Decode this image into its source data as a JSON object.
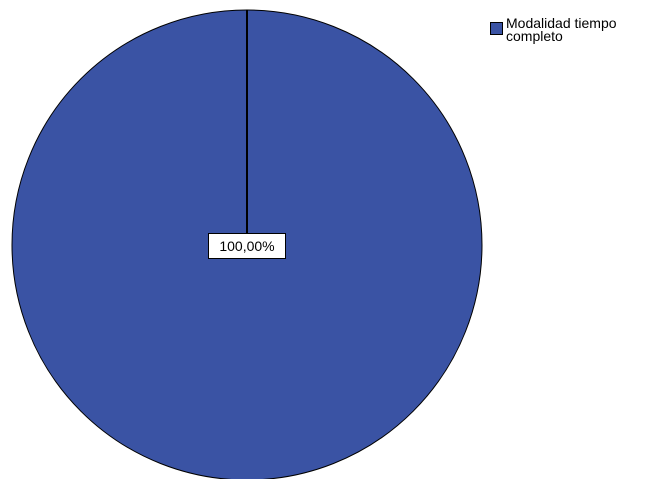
{
  "chart_data": {
    "type": "pie",
    "categories": [
      "Modalidad tiempo completo"
    ],
    "values": [
      100.0
    ],
    "data_labels": [
      "100,00%"
    ],
    "colors": [
      "#3a53a4"
    ],
    "legend_position": "top-right",
    "title": "",
    "xlabel": "",
    "ylabel": ""
  },
  "legend": {
    "items": [
      {
        "label": "Modalidad tiempo completo",
        "color": "#3a53a4"
      }
    ]
  }
}
